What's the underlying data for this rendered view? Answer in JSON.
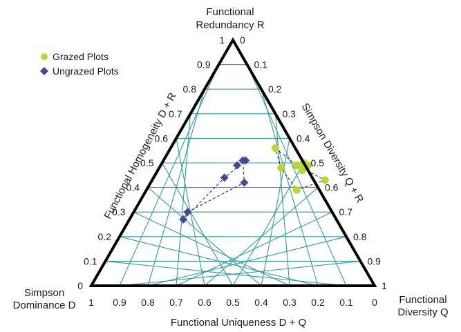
{
  "chart_data": {
    "type": "scatter",
    "subtype": "ternary",
    "corner_labels": {
      "top": [
        "Functional",
        "Redundancy R"
      ],
      "bottom_left": [
        "Simpson",
        "Dominance D"
      ],
      "bottom_right": [
        "Functional",
        "Diversity Q"
      ]
    },
    "axis_titles": {
      "left": "Functional Homogeneity D + R",
      "right": "Simpson Diversity Q + R",
      "bottom": "Functional Uniqueness D + Q"
    },
    "left_ticks": [
      "0",
      "0.1",
      "0.2",
      "0.3",
      "0.4",
      "0.5",
      "0.6",
      "0.7",
      "0.8",
      "0.9",
      "1"
    ],
    "right_ticks": [
      "0",
      "0.1",
      "0.2",
      "0.3",
      "0.4",
      "0.5",
      "0.6",
      "0.7",
      "0.8",
      "0.9",
      "1"
    ],
    "bottom_ticks": [
      "1",
      "0.9",
      "0.8",
      "0.7",
      "0.6",
      "0.5",
      "0.4",
      "0.3",
      "0.2",
      "0.1",
      "0"
    ],
    "grid": true,
    "legend_position": "top-left",
    "series": [
      {
        "name": "Grazed Plots",
        "marker": "circle",
        "color": "#bcd631",
        "points": [
          {
            "D": 0.07,
            "Q": 0.37,
            "R": 0.56
          },
          {
            "D": 0.09,
            "Q": 0.43,
            "R": 0.48
          },
          {
            "D": 0.03,
            "Q": 0.48,
            "R": 0.49
          },
          {
            "D": 0.0,
            "Q": 0.5,
            "R": 0.5
          },
          {
            "D": -0.01,
            "Q": 0.52,
            "R": 0.49
          },
          {
            "D": 0.02,
            "Q": 0.51,
            "R": 0.47
          },
          {
            "D": -0.04,
            "Q": 0.61,
            "R": 0.43
          },
          {
            "D": 0.08,
            "Q": 0.53,
            "R": 0.39
          }
        ]
      },
      {
        "name": "Ungrazed Plots",
        "marker": "diamond",
        "color": "#4b4594",
        "points": [
          {
            "D": 0.21,
            "Q": 0.28,
            "R": 0.51
          },
          {
            "D": 0.24,
            "Q": 0.27,
            "R": 0.49
          },
          {
            "D": 0.2,
            "Q": 0.29,
            "R": 0.51
          },
          {
            "D": 0.31,
            "Q": 0.25,
            "R": 0.44
          },
          {
            "D": 0.25,
            "Q": 0.33,
            "R": 0.42
          },
          {
            "D": 0.51,
            "Q": 0.19,
            "R": 0.3
          },
          {
            "D": 0.54,
            "Q": 0.19,
            "R": 0.27
          }
        ]
      }
    ],
    "hulls": [
      {
        "series": "Grazed Plots",
        "style": "dashed",
        "vertices": [
          0,
          2,
          6,
          7,
          1
        ]
      },
      {
        "series": "Ungrazed Plots",
        "style": "dashed",
        "vertices": [
          0,
          2,
          3,
          6,
          5,
          4
        ]
      }
    ]
  }
}
